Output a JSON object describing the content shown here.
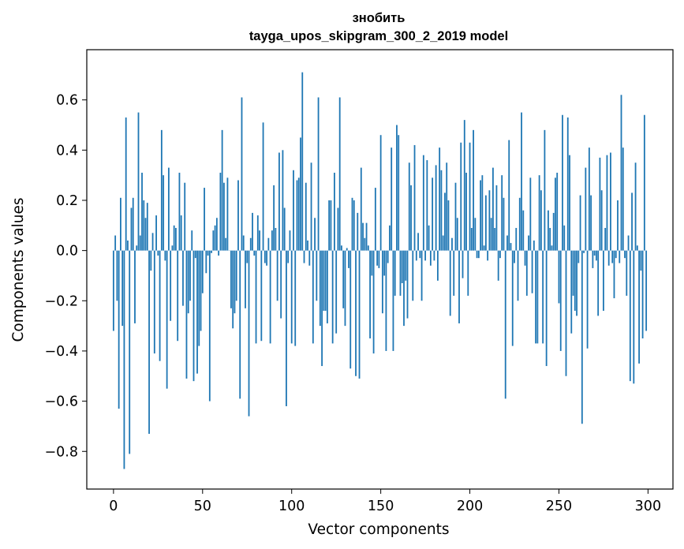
{
  "chart_data": {
    "type": "bar",
    "title": "знобить",
    "subtitle": "tayga_upos_skipgram_300_2_2019 model",
    "xlabel": "Vector components",
    "ylabel": "Components values",
    "xlim": [
      -15,
      314
    ],
    "ylim": [
      -0.95,
      0.8
    ],
    "xticks": [
      0,
      50,
      100,
      150,
      200,
      250,
      300
    ],
    "xtick_labels": [
      "0",
      "50",
      "100",
      "150",
      "200",
      "250",
      "300"
    ],
    "yticks": [
      -0.8,
      -0.6,
      -0.4,
      -0.2,
      0.0,
      0.2,
      0.4,
      0.6
    ],
    "ytick_labels": [
      "−0.8",
      "−0.6",
      "−0.4",
      "−0.2",
      "0.0",
      "0.2",
      "0.4",
      "0.6"
    ],
    "bar_color": "#1f77b4",
    "grid": false,
    "legend": "none",
    "x_start": 0,
    "values": [
      -0.32,
      0.06,
      -0.2,
      -0.63,
      0.21,
      -0.3,
      -0.87,
      0.53,
      0.04,
      -0.81,
      0.17,
      0.21,
      -0.29,
      0.02,
      0.55,
      0.06,
      0.31,
      0.2,
      0.13,
      0.19,
      -0.73,
      -0.08,
      0.07,
      -0.41,
      0.14,
      -0.02,
      -0.44,
      0.48,
      0.3,
      -0.04,
      -0.55,
      0.33,
      -0.28,
      0.02,
      0.1,
      0.09,
      -0.36,
      0.31,
      0.14,
      -0.22,
      0.27,
      -0.51,
      -0.25,
      -0.2,
      0.08,
      -0.52,
      -0.03,
      -0.49,
      -0.38,
      -0.32,
      -0.17,
      0.25,
      -0.09,
      -0.02,
      -0.6,
      -0.01,
      0.08,
      0.1,
      0.13,
      -0.02,
      0.31,
      0.48,
      0.27,
      0.05,
      0.29,
      0.0,
      -0.23,
      -0.31,
      -0.25,
      -0.2,
      0.28,
      -0.59,
      0.61,
      0.06,
      -0.23,
      -0.05,
      -0.66,
      0.05,
      0.15,
      -0.02,
      -0.37,
      0.14,
      0.08,
      -0.36,
      0.51,
      -0.05,
      -0.06,
      0.05,
      -0.37,
      0.08,
      0.26,
      0.09,
      -0.2,
      0.39,
      -0.27,
      0.4,
      0.17,
      -0.62,
      -0.05,
      0.08,
      -0.37,
      0.32,
      -0.38,
      0.28,
      0.29,
      0.45,
      0.71,
      -0.05,
      0.27,
      0.04,
      -0.06,
      0.35,
      -0.37,
      0.13,
      -0.2,
      0.61,
      -0.3,
      -0.46,
      -0.24,
      -0.24,
      -0.29,
      0.2,
      0.2,
      -0.37,
      0.31,
      -0.33,
      0.17,
      0.61,
      0.02,
      -0.23,
      -0.3,
      0.01,
      -0.07,
      -0.47,
      0.21,
      0.2,
      -0.5,
      0.15,
      -0.51,
      0.33,
      0.11,
      0.05,
      0.11,
      0.02,
      -0.35,
      -0.1,
      -0.41,
      0.25,
      -0.06,
      -0.07,
      0.46,
      -0.25,
      -0.1,
      -0.4,
      -0.05,
      0.1,
      0.41,
      -0.4,
      -0.18,
      0.5,
      0.46,
      -0.18,
      -0.13,
      -0.3,
      -0.12,
      -0.27,
      0.35,
      0.26,
      -0.2,
      0.42,
      -0.04,
      0.07,
      -0.03,
      -0.2,
      0.38,
      -0.04,
      0.36,
      0.1,
      -0.06,
      0.29,
      -0.04,
      0.34,
      -0.12,
      0.41,
      0.32,
      0.06,
      0.23,
      0.35,
      0.2,
      -0.26,
      0.05,
      -0.18,
      0.27,
      0.13,
      -0.29,
      0.43,
      -0.11,
      0.52,
      0.31,
      -0.18,
      0.43,
      0.09,
      0.48,
      0.13,
      -0.03,
      -0.03,
      0.28,
      0.3,
      0.02,
      0.22,
      -0.04,
      0.24,
      0.13,
      0.33,
      0.09,
      0.26,
      -0.12,
      -0.03,
      0.3,
      0.21,
      -0.59,
      0.06,
      0.44,
      0.03,
      -0.38,
      -0.05,
      0.09,
      -0.2,
      0.21,
      0.55,
      0.16,
      -0.06,
      -0.18,
      0.06,
      0.29,
      -0.17,
      0.04,
      -0.37,
      -0.37,
      0.3,
      0.24,
      -0.37,
      0.48,
      -0.46,
      0.16,
      0.09,
      0.02,
      0.15,
      0.29,
      0.31,
      -0.21,
      -0.4,
      0.54,
      0.1,
      -0.5,
      0.53,
      0.38,
      -0.33,
      -0.18,
      -0.24,
      -0.26,
      -0.05,
      0.22,
      -0.69,
      -0.01,
      0.33,
      -0.39,
      0.41,
      0.22,
      -0.07,
      -0.02,
      -0.04,
      -0.26,
      0.37,
      0.24,
      -0.24,
      0.09,
      0.38,
      -0.06,
      0.39,
      -0.05,
      -0.19,
      -0.03,
      0.2,
      -0.05,
      0.62,
      0.41,
      -0.03,
      -0.18,
      0.06,
      -0.52,
      0.23,
      -0.53,
      0.35,
      0.02,
      -0.45,
      -0.08,
      -0.35,
      0.54,
      -0.32
    ]
  }
}
